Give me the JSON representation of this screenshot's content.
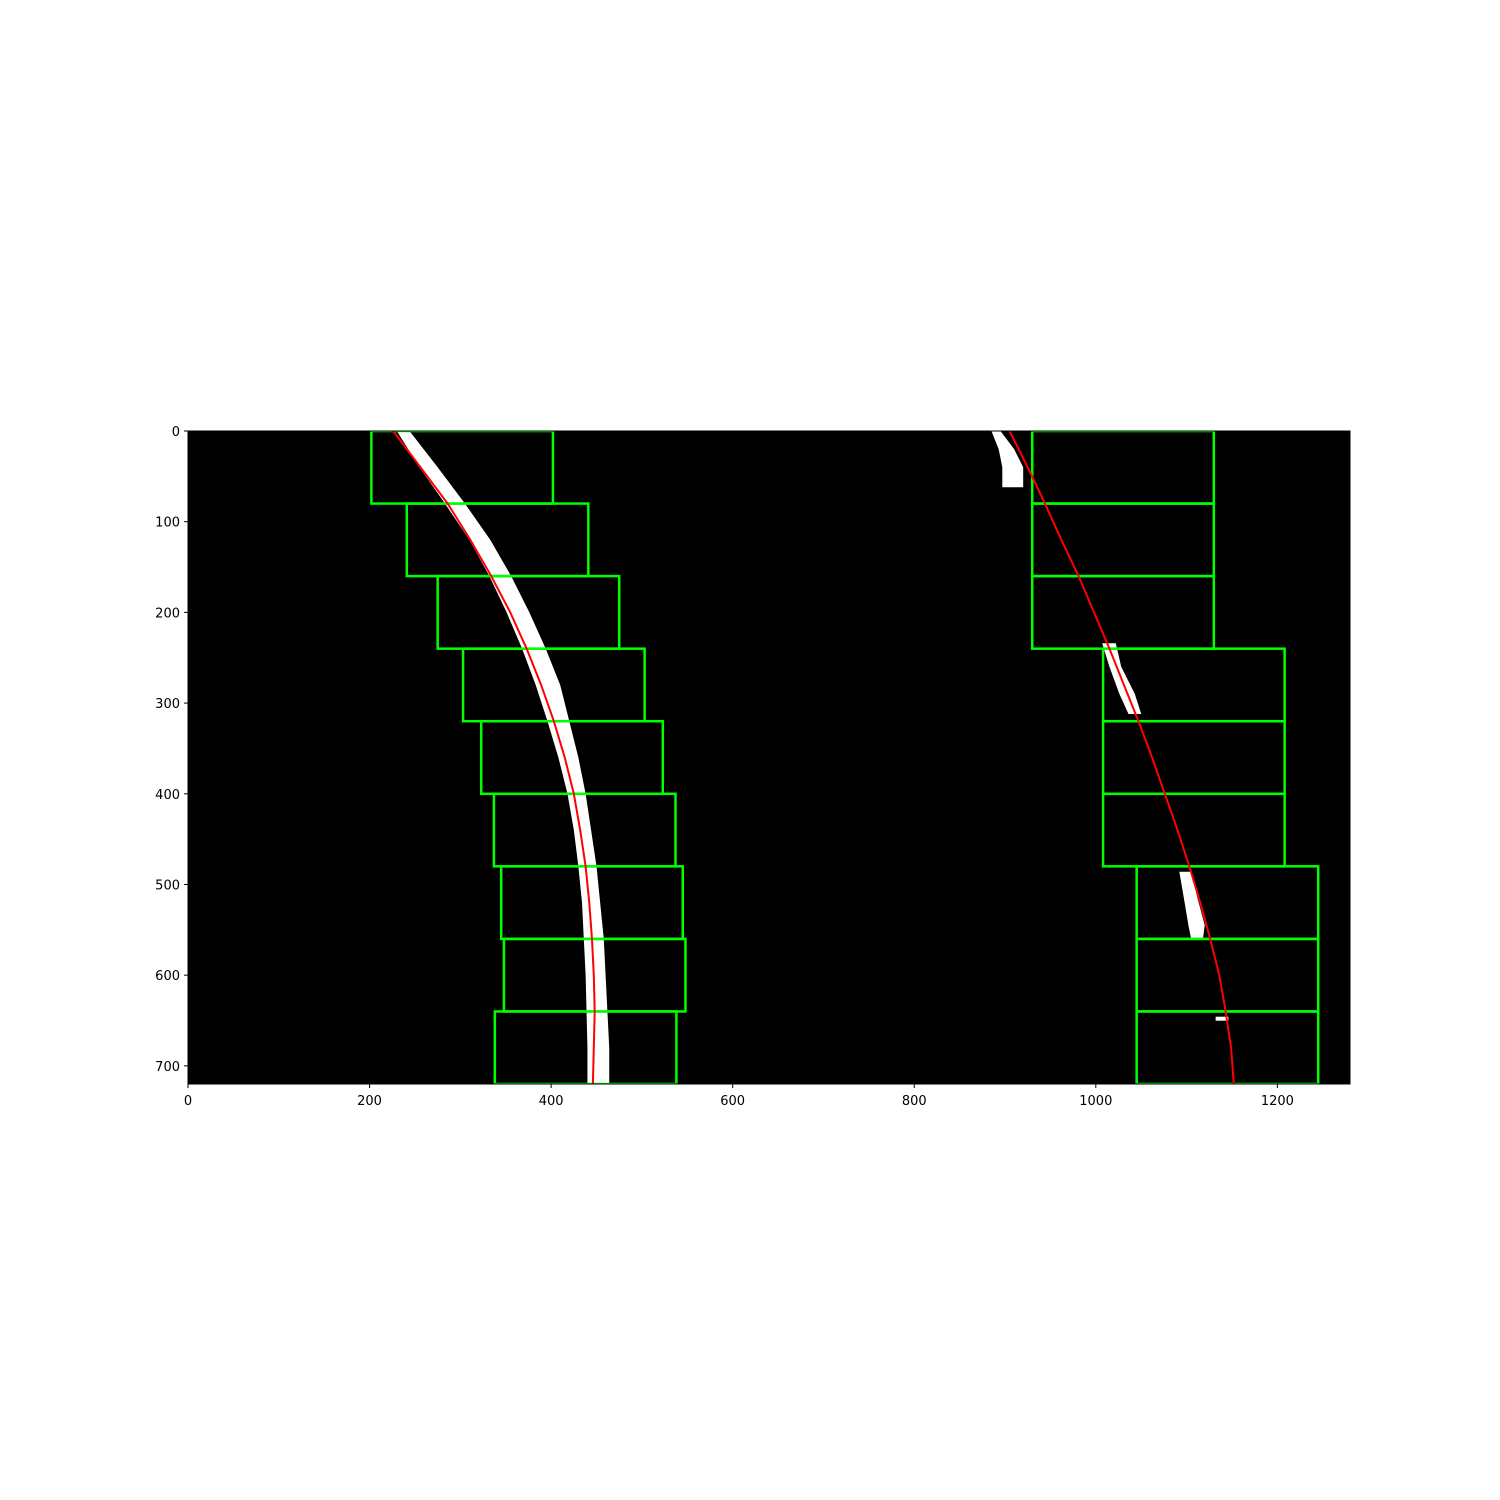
{
  "chart_data": {
    "type": "scatter",
    "title": "",
    "xlabel": "",
    "ylabel": "",
    "xlim": [
      0,
      1280
    ],
    "ylim": [
      720,
      0
    ],
    "y_inverted": true,
    "grid": false,
    "legend": "none",
    "x_ticks": [
      0,
      200,
      400,
      600,
      800,
      1000,
      1200
    ],
    "y_ticks": [
      0,
      100,
      200,
      300,
      400,
      500,
      600,
      700
    ],
    "x_tick_labels": [
      "0",
      "200",
      "400",
      "600",
      "800",
      "1000",
      "1200"
    ],
    "y_tick_labels": [
      "0",
      "100",
      "200",
      "300",
      "400",
      "500",
      "600",
      "700"
    ],
    "colors": {
      "image_background": "#000000",
      "lane_pixels": "#ffffff",
      "windows": "#00ff00",
      "fit_line": "#ff0000"
    },
    "windows": {
      "left": [
        {
          "x1": 202,
          "x2": 402,
          "y1": 0,
          "y2": 80
        },
        {
          "x1": 241,
          "x2": 441,
          "y1": 80,
          "y2": 160
        },
        {
          "x1": 275,
          "x2": 475,
          "y1": 160,
          "y2": 240
        },
        {
          "x1": 303,
          "x2": 503,
          "y1": 240,
          "y2": 320
        },
        {
          "x1": 323,
          "x2": 523,
          "y1": 320,
          "y2": 400
        },
        {
          "x1": 337,
          "x2": 537,
          "y1": 400,
          "y2": 480
        },
        {
          "x1": 345,
          "x2": 545,
          "y1": 480,
          "y2": 560
        },
        {
          "x1": 348,
          "x2": 548,
          "y1": 560,
          "y2": 640
        },
        {
          "x1": 338,
          "x2": 538,
          "y1": 640,
          "y2": 720
        }
      ],
      "right": [
        {
          "x1": 930,
          "x2": 1130,
          "y1": 0,
          "y2": 80
        },
        {
          "x1": 930,
          "x2": 1130,
          "y1": 80,
          "y2": 160
        },
        {
          "x1": 930,
          "x2": 1130,
          "y1": 160,
          "y2": 240
        },
        {
          "x1": 1008,
          "x2": 1208,
          "y1": 240,
          "y2": 320
        },
        {
          "x1": 1008,
          "x2": 1208,
          "y1": 320,
          "y2": 400
        },
        {
          "x1": 1008,
          "x2": 1208,
          "y1": 400,
          "y2": 480
        },
        {
          "x1": 1045,
          "x2": 1245,
          "y1": 480,
          "y2": 560
        },
        {
          "x1": 1045,
          "x2": 1245,
          "y1": 560,
          "y2": 640
        },
        {
          "x1": 1045,
          "x2": 1245,
          "y1": 640,
          "y2": 720
        }
      ]
    },
    "fits": {
      "left": [
        [
          0,
          226
        ],
        [
          40,
          256
        ],
        [
          80,
          286
        ],
        [
          120,
          311
        ],
        [
          160,
          334
        ],
        [
          200,
          355
        ],
        [
          240,
          373
        ],
        [
          280,
          389
        ],
        [
          320,
          403
        ],
        [
          360,
          415
        ],
        [
          400,
          425
        ],
        [
          440,
          432
        ],
        [
          480,
          438
        ],
        [
          520,
          442
        ],
        [
          560,
          445
        ],
        [
          600,
          447
        ],
        [
          640,
          448
        ],
        [
          680,
          447
        ],
        [
          720,
          446
        ]
      ],
      "right": [
        [
          0,
          905
        ],
        [
          40,
          925
        ],
        [
          80,
          944
        ],
        [
          120,
          962
        ],
        [
          160,
          981
        ],
        [
          200,
          998
        ],
        [
          240,
          1015
        ],
        [
          280,
          1031
        ],
        [
          320,
          1047
        ],
        [
          360,
          1062
        ],
        [
          400,
          1076
        ],
        [
          440,
          1090
        ],
        [
          480,
          1103
        ],
        [
          520,
          1115
        ],
        [
          560,
          1126
        ],
        [
          600,
          1136
        ],
        [
          640,
          1143
        ],
        [
          680,
          1149
        ],
        [
          720,
          1152
        ]
      ]
    },
    "lane_pixels": {
      "left_band": [
        [
          0,
          230,
          244
        ],
        [
          40,
          255,
          275
        ],
        [
          80,
          283,
          305
        ],
        [
          120,
          310,
          333
        ],
        [
          160,
          332,
          356
        ],
        [
          200,
          351,
          376
        ],
        [
          240,
          368,
          394
        ],
        [
          280,
          383,
          410
        ],
        [
          320,
          396,
          420
        ],
        [
          360,
          408,
          430
        ],
        [
          400,
          418,
          438
        ],
        [
          440,
          425,
          444
        ],
        [
          480,
          430,
          450
        ],
        [
          520,
          434,
          454
        ],
        [
          560,
          436,
          458
        ],
        [
          600,
          438,
          460
        ],
        [
          640,
          439,
          462
        ],
        [
          680,
          440,
          464
        ],
        [
          720,
          440,
          464
        ]
      ],
      "right_blobs": [
        [
          [
            0,
            885,
            895
          ],
          [
            20,
            893,
            910
          ],
          [
            40,
            897,
            920
          ],
          [
            62,
            897,
            920
          ]
        ],
        [
          [
            234,
            1007,
            1022
          ],
          [
            260,
            1015,
            1028
          ],
          [
            290,
            1026,
            1043
          ],
          [
            312,
            1036,
            1050
          ]
        ],
        [
          [
            486,
            1092,
            1105
          ],
          [
            515,
            1097,
            1112
          ],
          [
            545,
            1102,
            1120
          ],
          [
            560,
            1105,
            1118
          ]
        ],
        [
          [
            648,
            1132,
            1146
          ]
        ]
      ]
    }
  }
}
